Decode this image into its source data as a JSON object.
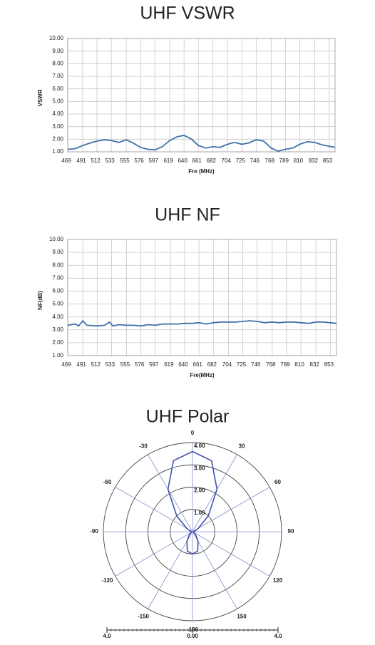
{
  "chart_data": [
    {
      "type": "line",
      "title": "UHF VSWR",
      "x_label": "Fre (MHz)",
      "y_label": "VSWR",
      "color": "#3f6fa8",
      "x": [
        469,
        480,
        491,
        502,
        512,
        523,
        533,
        544,
        555,
        565,
        576,
        587,
        597,
        608,
        619,
        630,
        640,
        651,
        661,
        672,
        682,
        693,
        704,
        714,
        725,
        735,
        746,
        757,
        768,
        778,
        789,
        800,
        810,
        821,
        832,
        843,
        853,
        862
      ],
      "values": [
        1.2,
        1.25,
        1.5,
        1.7,
        1.85,
        1.95,
        1.9,
        1.75,
        1.95,
        1.7,
        1.35,
        1.2,
        1.15,
        1.4,
        1.9,
        2.2,
        2.3,
        2.0,
        1.5,
        1.3,
        1.4,
        1.35,
        1.6,
        1.75,
        1.6,
        1.7,
        1.95,
        1.85,
        1.3,
        1.05,
        1.2,
        1.3,
        1.6,
        1.8,
        1.75,
        1.55,
        1.45,
        1.35
      ],
      "xlim": [
        469,
        862
      ],
      "xticks": [
        469,
        491,
        512,
        533,
        555,
        576,
        597,
        619,
        640,
        661,
        682,
        704,
        725,
        746,
        768,
        789,
        810,
        832,
        853
      ],
      "ylim": [
        1,
        10
      ],
      "yticks": [
        {
          "value": 1,
          "label": "1.00"
        },
        {
          "value": 2,
          "label": "2.00"
        },
        {
          "value": 3,
          "label": "3.00"
        },
        {
          "value": 4,
          "label": "4.00"
        },
        {
          "value": 5,
          "label": "5.00"
        },
        {
          "value": 6,
          "label": "6.00"
        },
        {
          "value": 7,
          "label": "7.00"
        },
        {
          "value": 8,
          "label": "8.00"
        },
        {
          "value": 9,
          "label": "9.00"
        },
        {
          "value": 10,
          "label": "10.00"
        }
      ],
      "grid": true
    },
    {
      "type": "line",
      "title": "UHF NF",
      "x_label": "Fre(MHz)",
      "y_label": "NF(dB)",
      "color": "#3f6fa8",
      "x": [
        469,
        480,
        485,
        491,
        497,
        512,
        523,
        530,
        535,
        544,
        555,
        565,
        576,
        587,
        597,
        608,
        619,
        630,
        640,
        651,
        661,
        672,
        682,
        693,
        704,
        714,
        725,
        735,
        746,
        757,
        768,
        778,
        789,
        800,
        810,
        821,
        832,
        843,
        853,
        862
      ],
      "values": [
        3.35,
        3.45,
        3.3,
        3.7,
        3.35,
        3.3,
        3.35,
        3.6,
        3.3,
        3.4,
        3.35,
        3.35,
        3.3,
        3.4,
        3.35,
        3.45,
        3.45,
        3.45,
        3.5,
        3.5,
        3.55,
        3.45,
        3.55,
        3.6,
        3.6,
        3.6,
        3.65,
        3.7,
        3.65,
        3.55,
        3.6,
        3.55,
        3.6,
        3.6,
        3.55,
        3.5,
        3.6,
        3.6,
        3.55,
        3.5
      ],
      "xlim": [
        469,
        862
      ],
      "xticks": [
        469,
        491,
        512,
        533,
        555,
        576,
        597,
        619,
        640,
        661,
        682,
        704,
        725,
        746,
        768,
        789,
        810,
        832,
        853
      ],
      "ylim": [
        1,
        10
      ],
      "yticks": [
        {
          "value": 1,
          "label": "1.00"
        },
        {
          "value": 2,
          "label": "2.00"
        },
        {
          "value": 3,
          "label": "3.00"
        },
        {
          "value": 4,
          "label": "4.00"
        },
        {
          "value": 5,
          "label": "5.00"
        },
        {
          "value": 6,
          "label": "6.00"
        },
        {
          "value": 7,
          "label": "7.00"
        },
        {
          "value": 8,
          "label": "8.00"
        },
        {
          "value": 9,
          "label": "9.00"
        },
        {
          "value": 10,
          "label": "10.00"
        }
      ],
      "grid": true
    },
    {
      "type": "polar",
      "title": "UHF Polar",
      "color": "#4050b0",
      "theta": [
        -180,
        -165,
        -150,
        -135,
        -120,
        -105,
        -90,
        -75,
        -60,
        -45,
        -30,
        -15,
        0,
        15,
        30,
        45,
        60,
        75,
        90,
        105,
        120,
        135,
        150,
        165,
        180
      ],
      "values": [
        1.0,
        0.9,
        0.5,
        0.2,
        0.1,
        0.05,
        0.05,
        0.1,
        0.3,
        1.0,
        2.2,
        3.3,
        3.6,
        3.3,
        2.2,
        1.0,
        0.3,
        0.1,
        0.05,
        0.05,
        0.1,
        0.2,
        0.5,
        0.9,
        1.0
      ],
      "rlim": [
        0,
        4
      ],
      "rticks": [
        {
          "value": 1,
          "label": "1.00"
        },
        {
          "value": 2,
          "label": "2.00"
        },
        {
          "value": 3,
          "label": "3.00"
        },
        {
          "value": 4,
          "label": "4.00"
        }
      ],
      "angle_ticks": [
        0,
        30,
        60,
        90,
        120,
        150,
        -180,
        -150,
        -120,
        -90,
        -60,
        -30
      ],
      "bottom_scale": [
        {
          "value": -4,
          "label": "4.0"
        },
        {
          "value": 0,
          "label": "0.00"
        },
        {
          "value": 4,
          "label": "4.0"
        }
      ]
    }
  ]
}
